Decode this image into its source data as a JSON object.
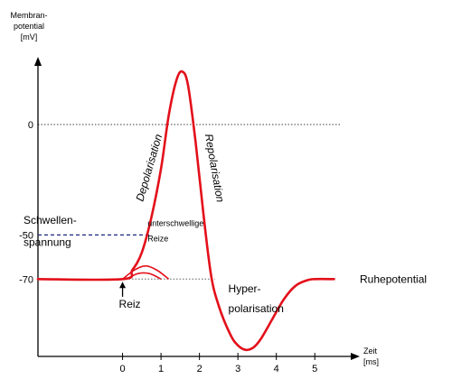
{
  "chart_data": {
    "type": "line",
    "ylabel_lines": [
      "Membran-",
      "potential",
      "[mV]"
    ],
    "xlabel_lines": [
      "Zeit",
      "[ms]"
    ],
    "x_ticks": [
      "0",
      "1",
      "2",
      "3",
      "4",
      "5"
    ],
    "y_ticks": [
      "0",
      "-50",
      "-70"
    ],
    "xlim": [
      -2.2,
      5.7
    ],
    "ylim": [
      -105,
      38
    ],
    "threshold_mV": -50,
    "resting_mV": -70,
    "series": [
      {
        "x": [
          -2.2,
          0,
          0.25,
          0.5,
          0.75,
          1.0,
          1.2,
          1.4,
          1.55,
          1.7,
          1.9,
          2.1,
          2.3,
          2.5,
          2.8,
          3.0,
          3.2,
          3.4,
          3.6,
          3.9,
          4.2,
          4.5,
          4.8,
          5.0,
          5.5
        ],
        "y": [
          -70,
          -70,
          -66,
          -58,
          -42,
          -20,
          4,
          20,
          24,
          18,
          -8,
          -40,
          -68,
          -82,
          -95,
          -100,
          -102,
          -101,
          -97,
          -88,
          -79,
          -73,
          -70.5,
          -70,
          -70
        ],
        "color": "#e3101a"
      }
    ],
    "subthreshold": [
      {
        "x": [
          0,
          0.3,
          0.6,
          0.9,
          1.2
        ],
        "y": [
          -70,
          -66,
          -64,
          -66,
          -70
        ]
      },
      {
        "x": [
          0.1,
          0.4,
          0.7,
          1.0
        ],
        "y": [
          -70,
          -67.5,
          -67.5,
          -70
        ]
      }
    ],
    "annotations": {
      "depolarisation": "Depolarisation",
      "repolarisation": "Repolarisation",
      "schwellen_1": "Schwellen-",
      "schwellen_2": "spannung",
      "unterschwellig_1": "unterschwellige",
      "unterschwellig_2": "Reize",
      "reiz": "Reiz",
      "hyper_1": "Hyper-",
      "hyper_2": "polarisation",
      "ruhe": "Ruhepotential"
    }
  }
}
